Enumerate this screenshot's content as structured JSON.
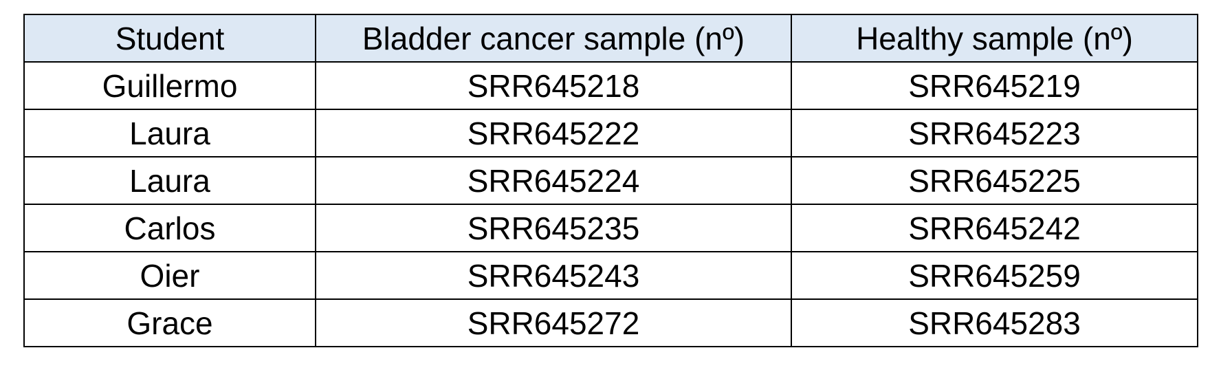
{
  "table": {
    "headers": [
      "Student",
      "Bladder cancer sample (nº)",
      "Healthy sample (nº)"
    ],
    "rows": [
      [
        "Guillermo",
        "SRR645218",
        "SRR645219"
      ],
      [
        "Laura",
        "SRR645222",
        "SRR645223"
      ],
      [
        "Laura",
        "SRR645224",
        "SRR645225"
      ],
      [
        "Carlos",
        "SRR645235",
        "SRR645242"
      ],
      [
        "Oier",
        "SRR645243",
        "SRR645259"
      ],
      [
        "Grace",
        "SRR645272",
        "SRR645283"
      ]
    ]
  },
  "colors": {
    "header_background": "#dde8f4",
    "border": "#000000",
    "text": "#000000"
  }
}
